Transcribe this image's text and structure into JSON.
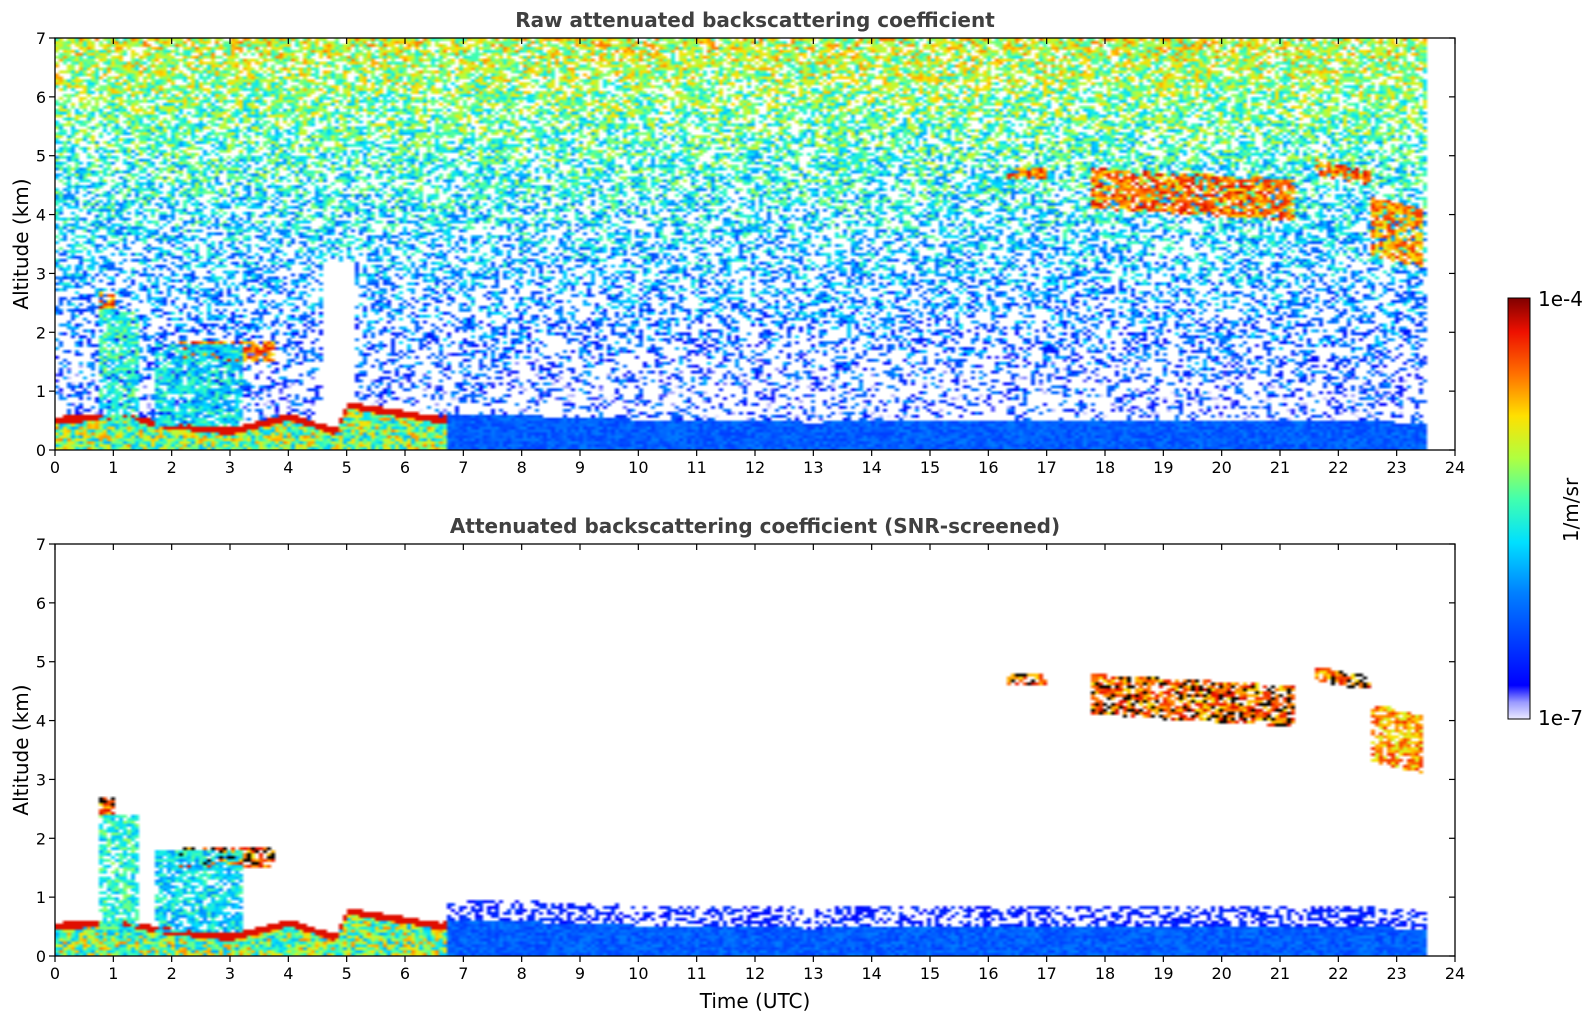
{
  "chart_data": [
    {
      "type": "heatmap",
      "title": "Raw attenuated backscattering coefficient",
      "xlabel": "",
      "ylabel": "Altitude (km)",
      "xlim": [
        0,
        24
      ],
      "ylim": [
        0,
        7
      ],
      "xticks": [
        "0",
        "1",
        "2",
        "3",
        "4",
        "5",
        "6",
        "7",
        "8",
        "9",
        "10",
        "11",
        "12",
        "13",
        "14",
        "15",
        "16",
        "17",
        "18",
        "19",
        "20",
        "21",
        "22",
        "23",
        "24"
      ],
      "yticks": [
        "0",
        "1",
        "2",
        "3",
        "4",
        "5",
        "6",
        "7"
      ],
      "data_end_time": 23.55,
      "boundary_layer": [
        [
          0,
          0.55
        ],
        [
          1,
          0.6
        ],
        [
          2,
          0.45
        ],
        [
          3,
          0.35
        ],
        [
          4,
          0.6
        ],
        [
          4.8,
          0.35
        ],
        [
          5,
          0.8
        ],
        [
          6.6,
          0.55
        ],
        [
          7,
          0.6
        ],
        [
          10,
          0.5
        ],
        [
          13,
          0.45
        ],
        [
          16,
          0.5
        ],
        [
          19,
          0.48
        ],
        [
          23.5,
          0.45
        ]
      ],
      "features": [
        {
          "name": "cloud",
          "t0": 16.3,
          "t1": 17.0,
          "alt_top": 4.8,
          "alt_bottom": 4.6,
          "level": 0.95
        },
        {
          "name": "cloud",
          "t0": 17.8,
          "t1": 21.3,
          "alt_top": 4.8,
          "alt_bottom": 4.1,
          "level": 0.95
        },
        {
          "name": "cloud",
          "t0": 21.6,
          "t1": 22.6,
          "alt_top": 4.95,
          "alt_bottom": 4.7,
          "level": 0.95
        },
        {
          "name": "cloud",
          "t0": 22.6,
          "t1": 23.5,
          "alt_top": 4.3,
          "alt_bottom": 3.3,
          "level": 0.9
        },
        {
          "name": "cloud",
          "t0": 0.7,
          "t1": 1.0,
          "alt_top": 2.7,
          "alt_bottom": 2.4,
          "level": 0.95
        },
        {
          "name": "cloud",
          "t0": 2.1,
          "t1": 3.75,
          "alt_top": 1.85,
          "alt_bottom": 1.5,
          "level": 0.95
        },
        {
          "name": "plume",
          "t0": 0.7,
          "t1": 1.4,
          "alt_top": 2.4,
          "alt_bottom": 0.4,
          "level": 0.6
        },
        {
          "name": "plume",
          "t0": 1.7,
          "t1": 3.2,
          "alt_top": 1.8,
          "alt_bottom": 0.4,
          "level": 0.55
        }
      ],
      "colorbar": {
        "label": "1/m/sr",
        "min_label": "1e-7",
        "max_label": "1e-4",
        "scale": "log",
        "colormap": "jet"
      }
    },
    {
      "type": "heatmap",
      "title": "Attenuated backscattering coefficient (SNR-screened)",
      "xlabel": "Time (UTC)",
      "ylabel": "Altitude (km)",
      "xlim": [
        0,
        24
      ],
      "ylim": [
        0,
        7
      ],
      "xticks": [
        "0",
        "1",
        "2",
        "3",
        "4",
        "5",
        "6",
        "7",
        "8",
        "9",
        "10",
        "11",
        "12",
        "13",
        "14",
        "15",
        "16",
        "17",
        "18",
        "19",
        "20",
        "21",
        "22",
        "23",
        "24"
      ],
      "yticks": [
        "0",
        "1",
        "2",
        "3",
        "4",
        "5",
        "6",
        "7"
      ],
      "data_end_time": 23.55,
      "screened": true
    }
  ],
  "colors": {
    "title": "#404040",
    "saturated": "#000000",
    "background": "#ffffff"
  }
}
